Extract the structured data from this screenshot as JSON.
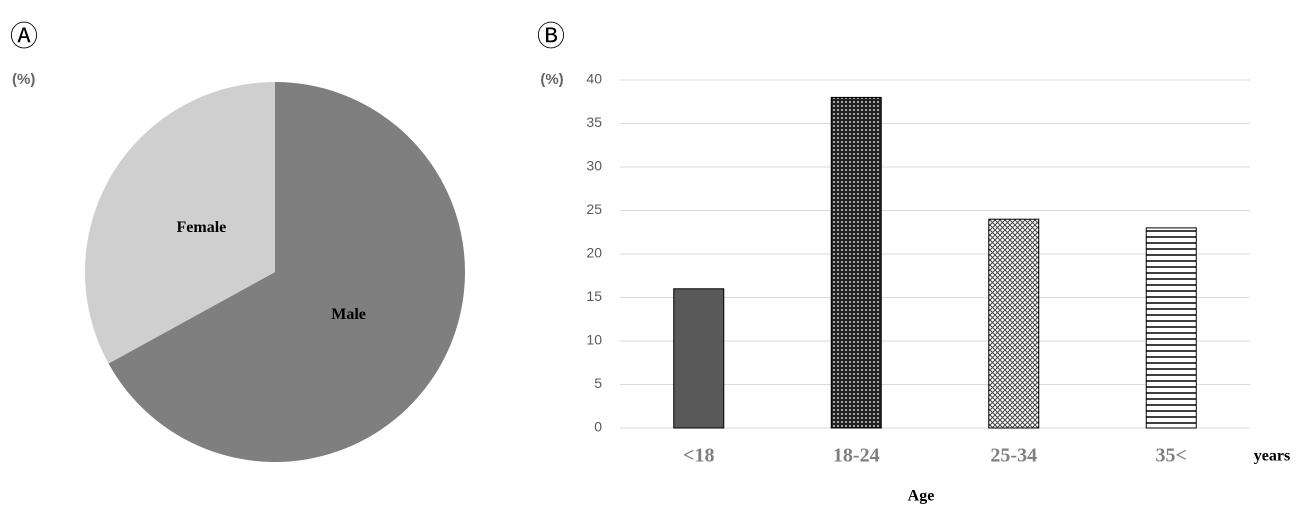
{
  "chart_data": [
    {
      "type": "pie",
      "label": "Ⓐ",
      "unit_label": "(%)",
      "categories": [
        "Male",
        "Female"
      ],
      "values": [
        67,
        33
      ],
      "colors": [
        "#7f7f7f",
        "#d0cfd0"
      ]
    },
    {
      "type": "bar",
      "label": "Ⓑ",
      "unit_label": "(%)",
      "xlabel": "Age",
      "x_unit": "years",
      "categories": [
        "<18",
        "18-24",
        "25-34",
        "35<"
      ],
      "values": [
        16,
        38,
        24,
        23
      ],
      "patterns": [
        "solid",
        "dots",
        "crosshatch",
        "hlines"
      ],
      "ylim": [
        0,
        40
      ],
      "yticks": [
        0,
        5,
        10,
        15,
        20,
        25,
        30,
        35,
        40
      ],
      "grid": true
    }
  ]
}
